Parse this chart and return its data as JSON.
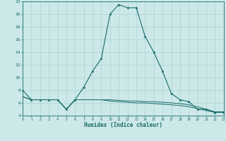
{
  "xlabel": "Humidex (Indice chaleur)",
  "bg_color": "#cce8e8",
  "grid_color": "#aad4d4",
  "line_color": "#1a6b6b",
  "hours": [
    0,
    1,
    2,
    3,
    4,
    5,
    6,
    7,
    8,
    9,
    10,
    11,
    12,
    13,
    14,
    15,
    16,
    17,
    18,
    19,
    20,
    21,
    22,
    23
  ],
  "main_line": [
    8.0,
    6.5,
    6.5,
    6.5,
    6.5,
    5.0,
    6.5,
    8.5,
    11.0,
    13.0,
    20.0,
    21.5,
    21.0,
    21.0,
    16.5,
    14.0,
    11.0,
    7.5,
    6.5,
    6.2,
    5.0,
    5.0,
    4.5,
    4.5
  ],
  "flat_line1": [
    7.0,
    6.5,
    6.5,
    6.5,
    6.5,
    5.0,
    6.5,
    6.5,
    6.5,
    6.5,
    6.5,
    6.4,
    6.3,
    6.3,
    6.2,
    6.2,
    6.1,
    6.0,
    5.9,
    5.7,
    5.4,
    5.0,
    4.6,
    4.6
  ],
  "flat_line2": [
    7.0,
    6.5,
    6.5,
    6.5,
    6.5,
    5.0,
    6.5,
    6.5,
    6.5,
    6.5,
    6.3,
    6.2,
    6.1,
    6.0,
    6.0,
    5.9,
    5.8,
    5.7,
    5.6,
    5.4,
    5.1,
    4.8,
    4.5,
    4.5
  ],
  "ylim": [
    4,
    22
  ],
  "xlim": [
    0,
    23
  ],
  "yticks": [
    4,
    6,
    8,
    10,
    12,
    14,
    16,
    18,
    20,
    22
  ],
  "xticks": [
    0,
    1,
    2,
    3,
    4,
    5,
    6,
    7,
    8,
    9,
    10,
    11,
    12,
    13,
    14,
    15,
    16,
    17,
    18,
    19,
    20,
    21,
    22,
    23
  ]
}
